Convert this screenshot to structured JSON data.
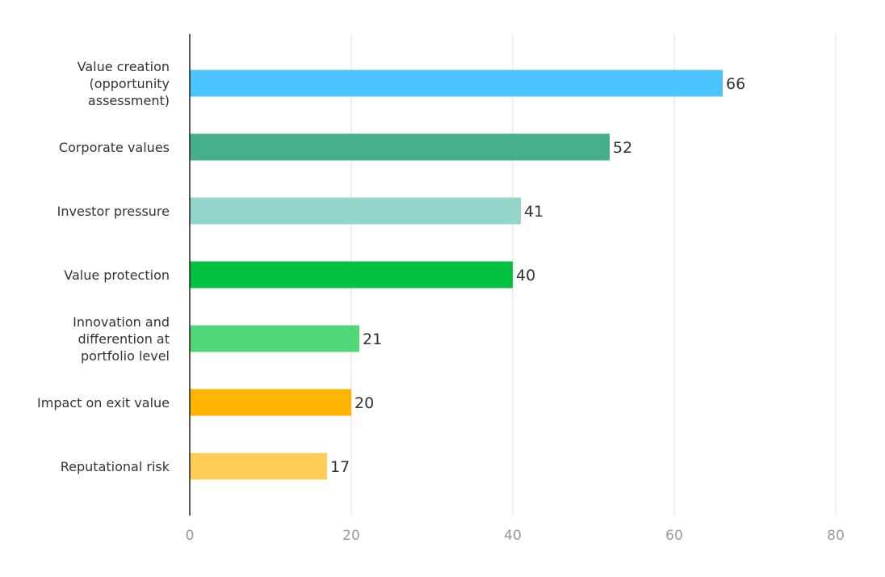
{
  "chart_data": {
    "type": "bar",
    "orientation": "horizontal",
    "title": "",
    "xlabel": "",
    "ylabel": "",
    "xlim": [
      0,
      80
    ],
    "x_ticks": [
      0,
      20,
      40,
      60,
      80
    ],
    "grid": true,
    "legend": "none",
    "categories": [
      "Value creation (opportunity assessment)",
      "Corporate values",
      "Investor pressure",
      "Value protection",
      "Innovation and differention at portfolio level",
      "Impact on exit value",
      "Reputational risk"
    ],
    "category_lines": [
      [
        "Value creation",
        "(opportunity",
        "assessment)"
      ],
      [
        "Corporate values"
      ],
      [
        "Investor pressure"
      ],
      [
        "Value protection"
      ],
      [
        "Innovation and",
        "differention at",
        "portfolio level"
      ],
      [
        "Impact on exit value"
      ],
      [
        "Reputational risk"
      ]
    ],
    "values": [
      66,
      52,
      41,
      40,
      21,
      20,
      17
    ],
    "colors": [
      "#4dc3ff",
      "#45ae8b",
      "#93d5c8",
      "#00c140",
      "#4fd778",
      "#ffb400",
      "#ffcc55"
    ]
  }
}
